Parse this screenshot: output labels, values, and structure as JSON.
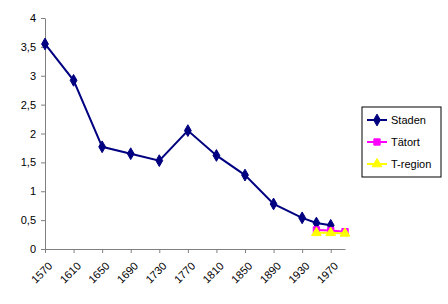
{
  "chart_data": {
    "type": "line",
    "x": [
      1570,
      1610,
      1650,
      1690,
      1730,
      1770,
      1810,
      1850,
      1890,
      1930,
      1950,
      1970,
      1990
    ],
    "xlim": [
      1570,
      1990
    ],
    "xticks": [
      1570,
      1610,
      1650,
      1690,
      1730,
      1770,
      1810,
      1850,
      1890,
      1930,
      1970
    ],
    "ylim": [
      0,
      4
    ],
    "yticks": [
      0,
      {
        "value": 0.5,
        "label": "0,5"
      },
      1,
      {
        "value": 1.5,
        "label": "1,5"
      },
      2,
      {
        "value": 2.5,
        "label": "2,5"
      },
      3,
      {
        "value": 3.5,
        "label": "3,5"
      },
      4
    ],
    "grid": false,
    "legend": "right",
    "series": [
      {
        "name": "Staden",
        "color": "#000080",
        "marker": "diamond",
        "line_style": "solid",
        "values": [
          3.55,
          2.92,
          1.77,
          1.65,
          1.53,
          2.05,
          1.62,
          1.28,
          0.78,
          0.54,
          0.45,
          0.41,
          null
        ]
      },
      {
        "name": "Tätort",
        "color": "#ff00ff",
        "marker": "square",
        "line_style": "solid",
        "values": [
          null,
          null,
          null,
          null,
          null,
          null,
          null,
          null,
          null,
          null,
          0.33,
          0.32,
          0.3
        ]
      },
      {
        "name": "T-region",
        "color": "#ffff00",
        "marker": "triangle",
        "line_style": "solid",
        "values": [
          null,
          null,
          null,
          null,
          null,
          null,
          null,
          null,
          null,
          null,
          0.28,
          0.28,
          0.27
        ]
      }
    ]
  }
}
